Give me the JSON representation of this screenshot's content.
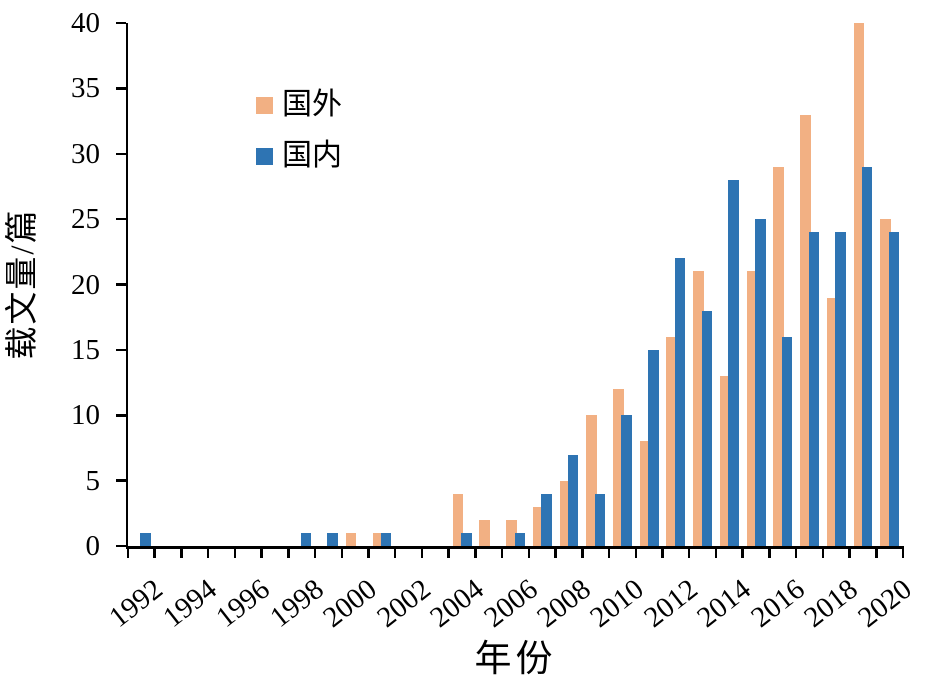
{
  "axes": {
    "x_title": "年份",
    "y_title": "载文量/篇",
    "y_ticks": [
      "0",
      "5",
      "10",
      "15",
      "20",
      "25",
      "30",
      "35",
      "40"
    ]
  },
  "legend": {
    "items": [
      {
        "label": "国外",
        "color": "#F2B083"
      },
      {
        "label": "国内",
        "color": "#2E74B3"
      }
    ]
  },
  "chart_data": {
    "type": "bar",
    "title": "",
    "xlabel": "年份",
    "ylabel": "载文量/篇",
    "ylim": [
      0,
      40
    ],
    "ytick_step": 5,
    "grid": false,
    "legend_position": "top-left-inside",
    "axis_color": "#000000",
    "categories": [
      1992,
      1993,
      1994,
      1995,
      1996,
      1997,
      1998,
      1999,
      2000,
      2001,
      2002,
      2003,
      2004,
      2005,
      2006,
      2007,
      2008,
      2009,
      2010,
      2011,
      2012,
      2013,
      2014,
      2015,
      2016,
      2017,
      2018,
      2019,
      2020
    ],
    "xtick_labels": [
      "1992",
      "1994",
      "1996",
      "1998",
      "2000",
      "2002",
      "2004",
      "2006",
      "2008",
      "2010",
      "2012",
      "2014",
      "2016",
      "2018",
      "2020"
    ],
    "series": [
      {
        "name": "国外",
        "key": "foreign",
        "color": "#F2B083",
        "values": [
          0,
          0,
          0,
          0,
          0,
          0,
          0,
          0,
          1,
          1,
          0,
          0,
          4,
          2,
          2,
          3,
          5,
          10,
          12,
          8,
          16,
          21,
          13,
          21,
          29,
          33,
          19,
          40,
          25
        ]
      },
      {
        "name": "国内",
        "key": "domestic",
        "color": "#2E74B3",
        "values": [
          1,
          0,
          0,
          0,
          0,
          0,
          1,
          1,
          0,
          1,
          0,
          0,
          1,
          0,
          1,
          4,
          7,
          4,
          10,
          15,
          22,
          18,
          28,
          25,
          16,
          24,
          24,
          29,
          24
        ]
      }
    ]
  }
}
